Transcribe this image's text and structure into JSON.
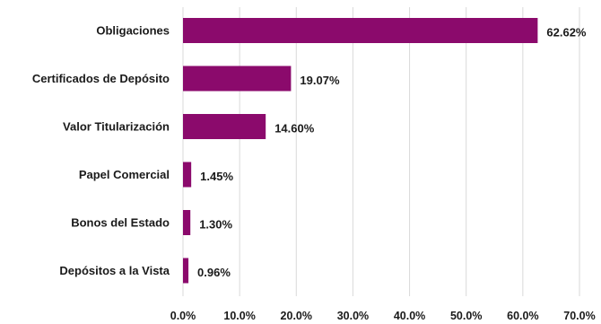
{
  "chart_data": {
    "type": "bar",
    "orientation": "horizontal",
    "categories": [
      "Obligaciones",
      "Certificados de Depósito",
      "Valor Titularización",
      "Papel Comercial",
      "Bonos del Estado",
      "Depósitos a la Vista"
    ],
    "values": [
      62.62,
      19.07,
      14.6,
      1.45,
      1.3,
      0.96
    ],
    "value_labels": [
      "62.62%",
      "19.07%",
      "14.60%",
      "1.45%",
      "1.30%",
      "0.96%"
    ],
    "xlim": [
      0,
      70
    ],
    "xticks": [
      "0.0%",
      "10.0%",
      "20.0%",
      "30.0%",
      "40.0%",
      "50.0%",
      "60.0%",
      "70.0%"
    ],
    "title": "",
    "xlabel": "",
    "ylabel": "",
    "grid": "vertical gridlines",
    "legend": "none",
    "bar_color": "#8b0a6c",
    "grid_color": "#d9d9d9"
  }
}
